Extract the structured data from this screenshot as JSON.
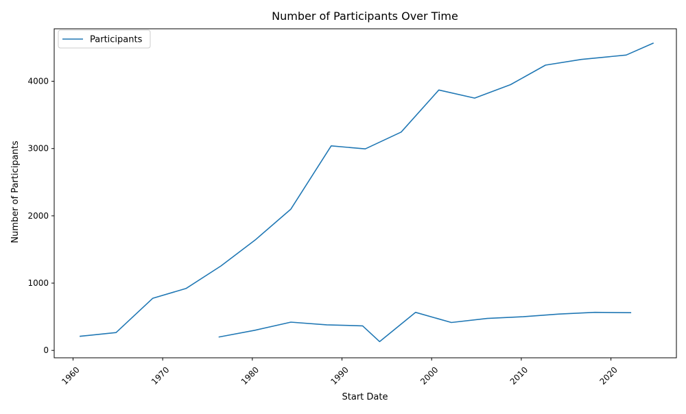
{
  "chart_data": {
    "type": "line",
    "title": "Number of Participants Over Time",
    "xlabel": "Start Date",
    "ylabel": "Number of Participants",
    "xlim": [
      1957.9,
      2027.3
    ],
    "ylim": [
      -110,
      4780
    ],
    "x_ticks": [
      1960,
      1970,
      1980,
      1990,
      2000,
      2010,
      2020
    ],
    "y_ticks": [
      0,
      1000,
      2000,
      3000,
      4000
    ],
    "grid": false,
    "legend_position": "top-left",
    "color": "#1f77b4",
    "series": [
      {
        "name": "Participants",
        "segments": [
          {
            "x": [
              1960.8,
              1964.8,
              1968.9,
              1972.6,
              1976.5,
              1980.4,
              1984.3,
              1988.8,
              1992.6,
              1996.6,
              2000.8,
              2004.8,
              2008.8,
              2012.7,
              2016.7,
              2021.7,
              2024.7
            ],
            "y": [
              210,
              265,
              775,
              920,
              1255,
              1650,
              2100,
              3040,
              2995,
              3245,
              3870,
              3750,
              3950,
              4240,
              4325,
              4390,
              4565
            ]
          },
          {
            "x": [
              1976.3,
              1980.3,
              1984.3,
              1988.3,
              1992.3,
              1994.2,
              1998.2,
              2002.2,
              2006.2,
              2010.2,
              2014.2,
              2018.2,
              2022.2
            ],
            "y": [
              200,
              300,
              420,
              380,
              365,
              130,
              565,
              415,
              475,
              500,
              540,
              565,
              560
            ]
          }
        ]
      }
    ]
  }
}
